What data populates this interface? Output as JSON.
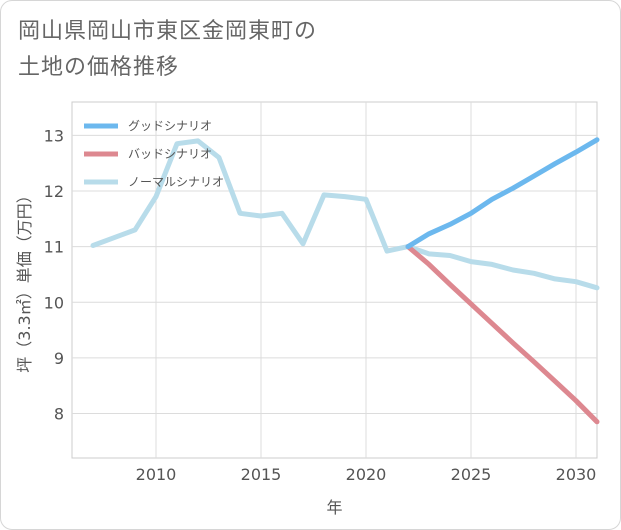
{
  "title_line1": "岡山県岡山市東区金岡東町の",
  "title_line2": "土地の価格推移",
  "chart_data": {
    "type": "line",
    "xlabel": "年",
    "ylabel": "坪（3.3㎡）単価（万円）",
    "xlim": [
      2006,
      2031
    ],
    "ylim": [
      7.2,
      13.6
    ],
    "x_ticks": [
      2010,
      2015,
      2020,
      2025,
      2030
    ],
    "y_ticks": [
      8,
      9,
      10,
      11,
      12,
      13
    ],
    "grid": true,
    "legend_position": "top-left",
    "series": [
      {
        "name": "グッドシナリオ",
        "color": "#6cb8ee",
        "x": [
          2022,
          2023,
          2024,
          2025,
          2026,
          2027,
          2028,
          2029,
          2030,
          2031
        ],
        "values": [
          11.0,
          11.23,
          11.4,
          11.6,
          11.85,
          12.05,
          12.27,
          12.49,
          12.7,
          12.92
        ]
      },
      {
        "name": "バッドシナリオ",
        "color": "#dd8890",
        "x": [
          2022,
          2023,
          2024,
          2025,
          2026,
          2027,
          2028,
          2029,
          2030,
          2031
        ],
        "values": [
          11.0,
          10.68,
          10.32,
          9.97,
          9.62,
          9.27,
          8.93,
          8.58,
          8.23,
          7.85
        ]
      },
      {
        "name": "ノーマルシナリオ",
        "color": "#b8dcea",
        "x": [
          2007,
          2008,
          2009,
          2010,
          2011,
          2012,
          2013,
          2014,
          2015,
          2016,
          2017,
          2018,
          2019,
          2020,
          2021,
          2022,
          2023,
          2024,
          2025,
          2026,
          2027,
          2028,
          2029,
          2030,
          2031
        ],
        "values": [
          11.02,
          11.16,
          11.3,
          11.9,
          12.85,
          12.9,
          12.6,
          11.6,
          11.55,
          11.6,
          11.05,
          11.93,
          11.9,
          11.85,
          10.92,
          11.0,
          10.87,
          10.84,
          10.73,
          10.68,
          10.58,
          10.52,
          10.42,
          10.37,
          10.26
        ]
      }
    ]
  }
}
